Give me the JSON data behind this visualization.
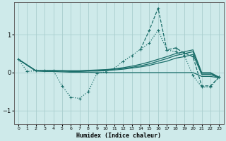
{
  "background_color": "#ceeaea",
  "grid_color": "#aacece",
  "line_color": "#1a6e6a",
  "xlabel": "Humidex (Indice chaleur)",
  "xlim": [
    -0.5,
    23.5
  ],
  "ylim": [
    -1.35,
    1.85
  ],
  "yticks": [
    -1,
    0,
    1
  ],
  "xtick_labels": [
    "0",
    "1",
    "2",
    "3",
    "4",
    "5",
    "6",
    "7",
    "8",
    "9",
    "10",
    "11",
    "12",
    "13",
    "14",
    "15",
    "16",
    "17",
    "18",
    "19",
    "20",
    "21",
    "22",
    "23"
  ],
  "lines": [
    {
      "x": [
        0,
        1,
        2,
        3,
        4,
        5,
        6,
        7,
        8,
        9,
        10,
        11,
        12,
        13,
        14,
        15,
        16,
        17,
        18,
        19,
        20,
        21,
        22,
        23
      ],
      "y": [
        0.35,
        0.03,
        0.05,
        0.05,
        0.05,
        -0.35,
        -0.65,
        -0.68,
        -0.5,
        -0.02,
        0.02,
        0.12,
        0.3,
        0.45,
        0.62,
        0.78,
        1.12,
        0.6,
        0.55,
        0.45,
        -0.08,
        -0.38,
        -0.38,
        -0.12
      ],
      "marker": "+",
      "linestyle": ":",
      "linewidth": 0.9
    },
    {
      "x": [
        14,
        15,
        16,
        17,
        18,
        19,
        20,
        21,
        22,
        23
      ],
      "y": [
        0.62,
        1.12,
        1.7,
        0.6,
        0.65,
        0.52,
        0.42,
        -0.35,
        -0.35,
        -0.12
      ],
      "marker": "+",
      "linestyle": "--",
      "linewidth": 0.9
    },
    {
      "x": [
        0,
        2,
        3,
        4,
        5,
        6,
        7,
        8,
        9,
        10,
        11,
        12,
        13,
        14,
        15,
        16,
        17,
        18,
        19,
        20,
        21,
        22,
        23
      ],
      "y": [
        0.35,
        0.05,
        0.05,
        0.05,
        0.05,
        0.05,
        0.05,
        0.06,
        0.07,
        0.08,
        0.1,
        0.13,
        0.17,
        0.22,
        0.28,
        0.35,
        0.42,
        0.5,
        0.55,
        0.6,
        0.0,
        0.0,
        -0.12
      ],
      "marker": null,
      "linestyle": "-",
      "linewidth": 0.9
    },
    {
      "x": [
        0,
        2,
        3,
        4,
        5,
        6,
        7,
        8,
        9,
        10,
        11,
        12,
        13,
        14,
        15,
        16,
        17,
        18,
        19,
        20,
        21,
        22,
        23
      ],
      "y": [
        0.35,
        0.05,
        0.05,
        0.05,
        0.05,
        0.04,
        0.04,
        0.05,
        0.06,
        0.07,
        0.09,
        0.11,
        0.14,
        0.18,
        0.23,
        0.3,
        0.37,
        0.45,
        0.5,
        0.55,
        -0.02,
        -0.02,
        -0.13
      ],
      "marker": null,
      "linestyle": "-",
      "linewidth": 0.9
    },
    {
      "x": [
        0,
        2,
        3,
        4,
        5,
        6,
        7,
        8,
        9,
        10,
        11,
        12,
        13,
        14,
        15,
        16,
        17,
        18,
        19,
        20,
        21,
        22,
        23
      ],
      "y": [
        0.35,
        0.05,
        0.05,
        0.05,
        0.04,
        0.03,
        0.03,
        0.04,
        0.04,
        0.05,
        0.07,
        0.09,
        0.12,
        0.15,
        0.19,
        0.25,
        0.3,
        0.38,
        0.42,
        0.48,
        -0.05,
        -0.05,
        -0.14
      ],
      "marker": null,
      "linestyle": "-",
      "linewidth": 0.9
    },
    {
      "x": [
        0,
        2,
        3,
        4,
        5,
        6,
        7,
        8,
        9,
        10,
        11,
        12,
        13,
        14,
        15,
        16,
        17,
        18,
        19,
        20,
        21,
        22,
        23
      ],
      "y": [
        0.35,
        0.04,
        0.03,
        0.03,
        0.02,
        0.01,
        0.01,
        0.01,
        0.0,
        0.0,
        0.0,
        0.0,
        0.0,
        0.0,
        0.0,
        0.0,
        0.0,
        0.0,
        0.0,
        0.0,
        -0.1,
        -0.1,
        -0.14
      ],
      "marker": null,
      "linestyle": "-",
      "linewidth": 0.9
    }
  ]
}
